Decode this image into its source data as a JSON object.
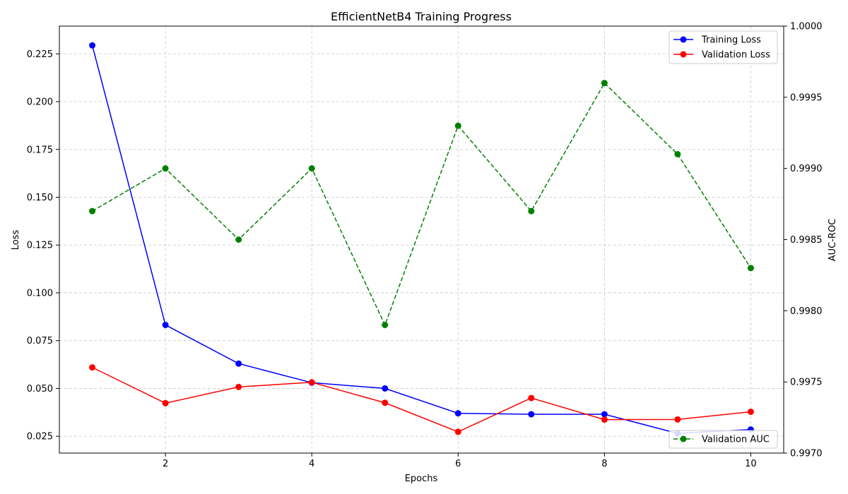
{
  "chart_data": {
    "type": "line",
    "title": "EfficientNetB4 Training Progress",
    "xlabel": "Epochs",
    "ylabel_left": "Loss",
    "ylabel_right": "AUC-ROC",
    "x": [
      1,
      2,
      3,
      4,
      5,
      6,
      7,
      8,
      9,
      10
    ],
    "xlim": [
      0.55,
      10.45
    ],
    "ylim_left": [
      0.0162,
      0.2395
    ],
    "ylim_right": [
      0.997,
      1.0
    ],
    "x_ticks": [
      2,
      4,
      6,
      8,
      10
    ],
    "x_tick_labels": [
      "2",
      "4",
      "6",
      "8",
      "10"
    ],
    "y_left_ticks": [
      0.025,
      0.05,
      0.075,
      0.1,
      0.125,
      0.15,
      0.175,
      0.2,
      0.225
    ],
    "y_left_tick_labels": [
      "0.025",
      "0.050",
      "0.075",
      "0.100",
      "0.125",
      "0.150",
      "0.175",
      "0.200",
      "0.225"
    ],
    "y_right_ticks": [
      0.997,
      0.9975,
      0.998,
      0.9985,
      0.999,
      0.9995,
      1.0
    ],
    "y_right_tick_labels": [
      "0.9970",
      "0.9975",
      "0.9980",
      "0.9985",
      "0.9990",
      "0.9995",
      "1.0000"
    ],
    "grid": true,
    "series": [
      {
        "name": "Training Loss",
        "axis": "left",
        "color": "#0000ff",
        "linestyle": "solid",
        "values": [
          0.2294,
          0.0832,
          0.063,
          0.053,
          0.05,
          0.037,
          0.0365,
          0.0365,
          0.0265,
          0.0285
        ]
      },
      {
        "name": "Validation Loss",
        "axis": "left",
        "color": "#ff0000",
        "linestyle": "solid",
        "values": [
          0.061,
          0.0423,
          0.0508,
          0.0532,
          0.0425,
          0.0273,
          0.045,
          0.0337,
          0.0338,
          0.0378
        ]
      },
      {
        "name": "Validation AUC",
        "axis": "right",
        "color": "#008000",
        "linestyle": "dashed",
        "values": [
          0.9987,
          0.999,
          0.9985,
          0.999,
          0.9979,
          0.9993,
          0.9987,
          0.9996,
          0.9991,
          0.9983
        ]
      }
    ],
    "legend_left": {
      "placement": "upper right",
      "entries": [
        "Training Loss",
        "Validation Loss"
      ]
    },
    "legend_right": {
      "placement": "lower right",
      "entries": [
        "Validation AUC"
      ]
    }
  }
}
